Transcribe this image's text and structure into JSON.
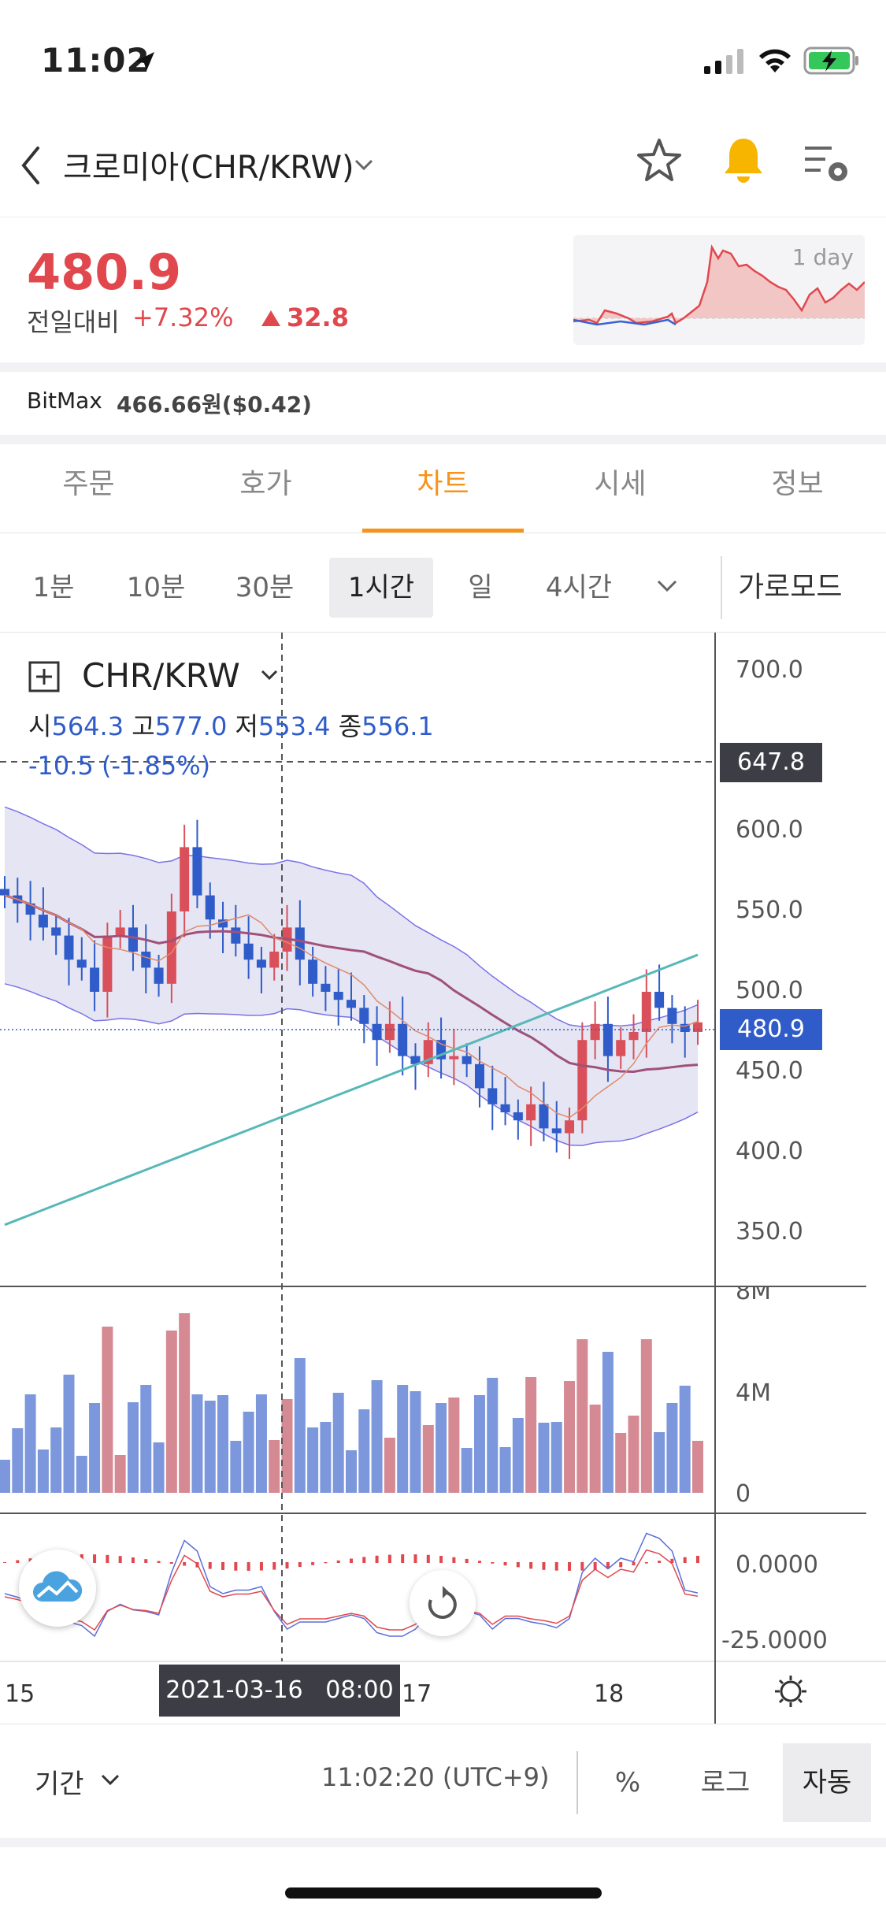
{
  "status_bar": {
    "time": "11:02"
  },
  "header": {
    "title": "크로미아(CHR/KRW)"
  },
  "price": {
    "current": "480.9",
    "label": "전일대비",
    "change_pct": "+7.32%",
    "change_abs": "32.8",
    "mini_chart_label": "1 day"
  },
  "bitmax": {
    "label": "BitMax",
    "value": "466.66원($0.42)"
  },
  "tabs": [
    {
      "label": "주문"
    },
    {
      "label": "호가"
    },
    {
      "label": "차트"
    },
    {
      "label": "시세"
    },
    {
      "label": "정보"
    }
  ],
  "active_tab": "차트",
  "intervals": [
    {
      "label": "1분"
    },
    {
      "label": "10분"
    },
    {
      "label": "30분"
    },
    {
      "label": "1시간"
    },
    {
      "label": "일"
    },
    {
      "label": "4시간"
    }
  ],
  "selected_interval": "1시간",
  "mode_label": "가로모드",
  "chart": {
    "symbol": "CHR/KRW",
    "ohlc": {
      "open_label": "시",
      "open": "564.3",
      "high_label": "고",
      "high": "577.0",
      "low_label": "저",
      "low": "553.4",
      "close_label": "종",
      "close": "556.1"
    },
    "change_text": "-10.5 (-1.85%)",
    "crosshair_price": "647.8",
    "last_price_tag": "480.9",
    "price_ticks": [
      "700.0",
      "650.0",
      "600.0",
      "550.0",
      "500.0",
      "450.0",
      "400.0",
      "350.0"
    ],
    "volume_ticks": [
      "8M",
      "4M",
      "0"
    ],
    "macd_ticks": [
      "0.0000",
      "-25.0000"
    ],
    "date_ticks": [
      "15",
      "17",
      "18"
    ],
    "crosshair_date": "2021-03-16   08:00"
  },
  "chart_data": {
    "type": "candlestick",
    "interval": "1 hour",
    "ylim": [
      330,
      720
    ],
    "y_ticks": [
      350,
      400,
      450,
      500,
      550,
      600,
      650,
      700
    ],
    "close_series": [
      560,
      555,
      548,
      540,
      535,
      520,
      515,
      500,
      535,
      540,
      525,
      515,
      505,
      550,
      590,
      560,
      545,
      540,
      530,
      520,
      515,
      525,
      540,
      520,
      505,
      500,
      495,
      490,
      480,
      470,
      480,
      460,
      455,
      470,
      458,
      460,
      455,
      440,
      430,
      425,
      420,
      430,
      415,
      412,
      420,
      470,
      480,
      460,
      470,
      475,
      500,
      490,
      480,
      475,
      481
    ],
    "last_price": 480.9,
    "colors": {
      "up": "#d9505a",
      "down": "#2f5cc9",
      "bollinger_fill": "#dcdcef",
      "ma_long": "#56b8b8",
      "ma_mid": "#a0507a",
      "ma_short": "#e08a6a"
    }
  },
  "bottom_bar": {
    "period_label": "기간",
    "clock": "11:02:20 (UTC+9)",
    "options": [
      {
        "label": "%"
      },
      {
        "label": "로그"
      },
      {
        "label": "자동"
      }
    ],
    "selected_option": "자동"
  }
}
